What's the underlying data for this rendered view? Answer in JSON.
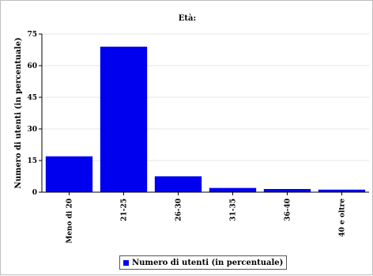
{
  "chart_data": {
    "type": "bar",
    "title": "Età:",
    "ylabel": "Numero di utenti (in percentuale)",
    "xlabel": "",
    "categories": [
      "Meno di 20",
      "21-25",
      "26-30",
      "31-35",
      "36-40",
      "40 e oltre"
    ],
    "series": [
      {
        "name": "Numero di utenti (in percentuale)",
        "values": [
          17,
          69,
          7.5,
          2,
          1.5,
          1.2
        ]
      }
    ],
    "ylim": [
      0,
      75
    ],
    "yticks": [
      0,
      15,
      30,
      45,
      60,
      75
    ],
    "grid": true,
    "legend": "bottom",
    "bar_color": "#0000ee"
  }
}
